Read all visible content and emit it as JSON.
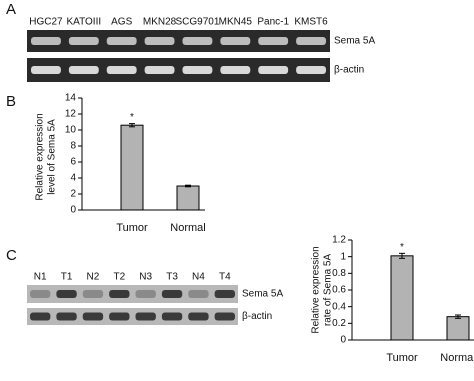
{
  "panel_a": {
    "label": "A",
    "lanes": [
      "HGC27",
      "KATOIII",
      "AGS",
      "MKN28",
      "SCG9701",
      "MKN45",
      "Panc-1",
      "KMST6"
    ],
    "rows": [
      "Sema 5A",
      "β-actin"
    ]
  },
  "panel_b": {
    "label": "B"
  },
  "panel_c": {
    "label": "C",
    "lanes": [
      "N1",
      "T1",
      "N2",
      "T2",
      "N3",
      "T3",
      "N4",
      "T4"
    ],
    "rows": [
      "Sema 5A",
      "β-actin"
    ]
  },
  "chart_data": [
    {
      "type": "bar",
      "ylabel": [
        "Relative expression",
        "level of Sema 5A"
      ],
      "categories": [
        "Tumor",
        "Normal"
      ],
      "values": [
        10.6,
        3.0
      ],
      "errors": [
        0.2,
        0.1
      ],
      "annotation": "*",
      "color": "#b3b3b3",
      "ylim": [
        0,
        14
      ],
      "yticks": [
        0,
        2,
        4,
        6,
        8,
        10,
        12,
        14
      ]
    },
    {
      "type": "bar",
      "ylabel": [
        "Relative expression",
        "rate of Sema 5A"
      ],
      "categories": [
        "Tumor",
        "Normal"
      ],
      "values": [
        1.01,
        0.28
      ],
      "errors": [
        0.03,
        0.02
      ],
      "annotation": "*",
      "color": "#b3b3b3",
      "ylim": [
        0,
        1.2
      ],
      "yticks": [
        0,
        0.2,
        0.4,
        0.6,
        0.8,
        1,
        1.2
      ]
    }
  ]
}
